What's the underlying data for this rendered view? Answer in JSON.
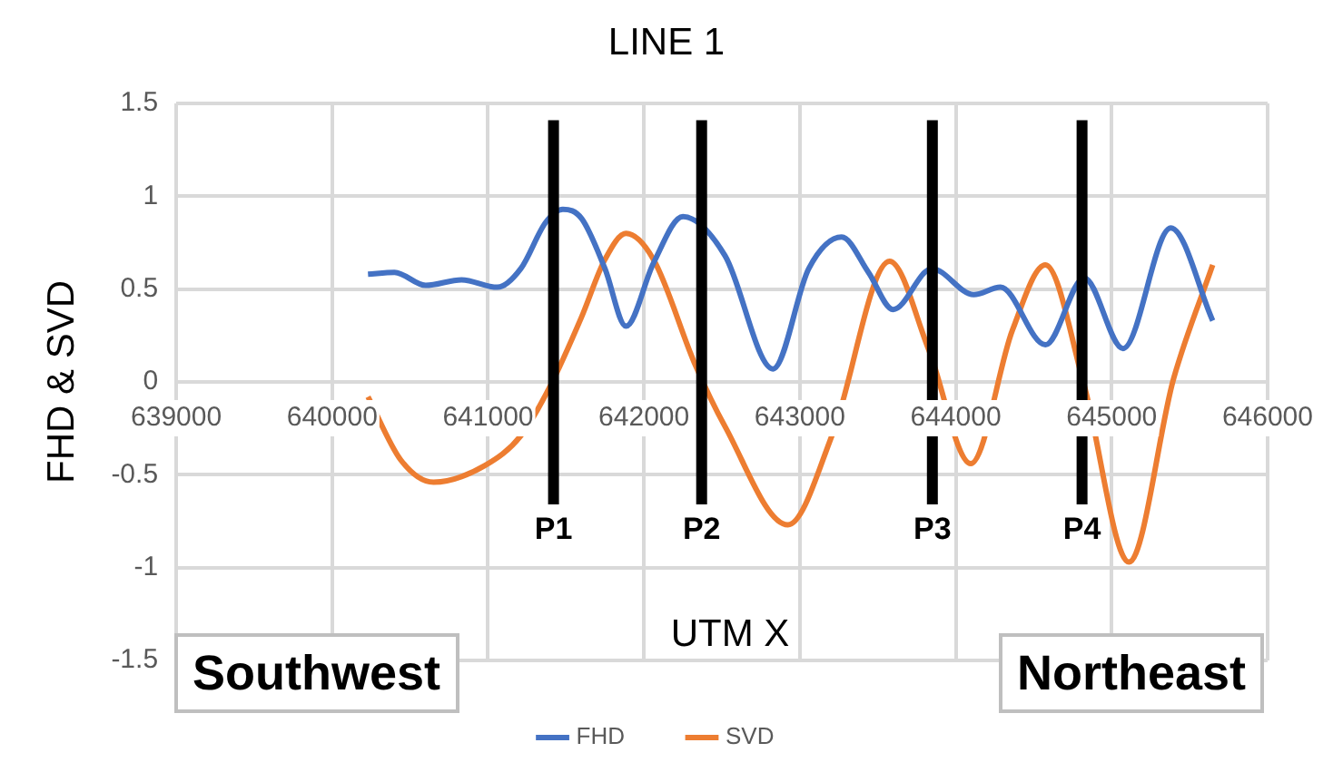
{
  "chart_data": {
    "type": "line",
    "title": "LINE 1",
    "xlabel": "UTM X",
    "ylabel": "FHD & SVD",
    "xlim": [
      639000,
      646000
    ],
    "xticks": [
      639000,
      640000,
      641000,
      642000,
      643000,
      644000,
      645000,
      646000
    ],
    "ylim": [
      -1.5,
      1.5
    ],
    "yticks": [
      -1.5,
      -1,
      -0.5,
      0,
      0.5,
      1,
      1.5
    ],
    "grid": true,
    "legend": "bottom",
    "marker": "none",
    "line_style": "solid",
    "series": [
      {
        "name": "FHD",
        "color": "#4472c4",
        "x": [
          640230,
          640400,
          640600,
          640830,
          641060,
          641210,
          641370,
          641480,
          641600,
          641750,
          641885,
          642061,
          642250,
          642520,
          642828,
          643057,
          643268,
          643440,
          643598,
          643847,
          644115,
          644287,
          644575,
          644824,
          645073,
          645379,
          645648
        ],
        "values": [
          0.58,
          0.59,
          0.52,
          0.55,
          0.51,
          0.61,
          0.86,
          0.93,
          0.88,
          0.61,
          0.3,
          0.64,
          0.89,
          0.68,
          0.07,
          0.61,
          0.78,
          0.59,
          0.39,
          0.61,
          0.47,
          0.51,
          0.2,
          0.56,
          0.18,
          0.83,
          0.33
        ]
      },
      {
        "name": "SVD",
        "color": "#ed7d31",
        "x": [
          640230,
          640440,
          640650,
          640980,
          641210,
          641400,
          641600,
          641750,
          641885,
          642061,
          642330,
          642520,
          642923,
          643210,
          643575,
          643828,
          644096,
          644364,
          644575,
          644824,
          645111,
          645398,
          645648
        ],
        "values": [
          -0.08,
          -0.42,
          -0.54,
          -0.45,
          -0.29,
          -0.02,
          0.35,
          0.66,
          0.8,
          0.66,
          0.09,
          -0.24,
          -0.77,
          -0.28,
          0.65,
          0.17,
          -0.44,
          0.28,
          0.63,
          -0.02,
          -0.97,
          0.02,
          0.63
        ]
      }
    ],
    "ref_lines": [
      {
        "axis": "x",
        "value": 641420,
        "label": "P1",
        "color": "#000000"
      },
      {
        "axis": "x",
        "value": 642370,
        "label": "P2",
        "color": "#000000"
      },
      {
        "axis": "x",
        "value": 643850,
        "label": "P3",
        "color": "#000000"
      },
      {
        "axis": "x",
        "value": 644810,
        "label": "P4",
        "color": "#000000"
      }
    ],
    "annotations": [
      "Southwest",
      "Northeast"
    ]
  }
}
